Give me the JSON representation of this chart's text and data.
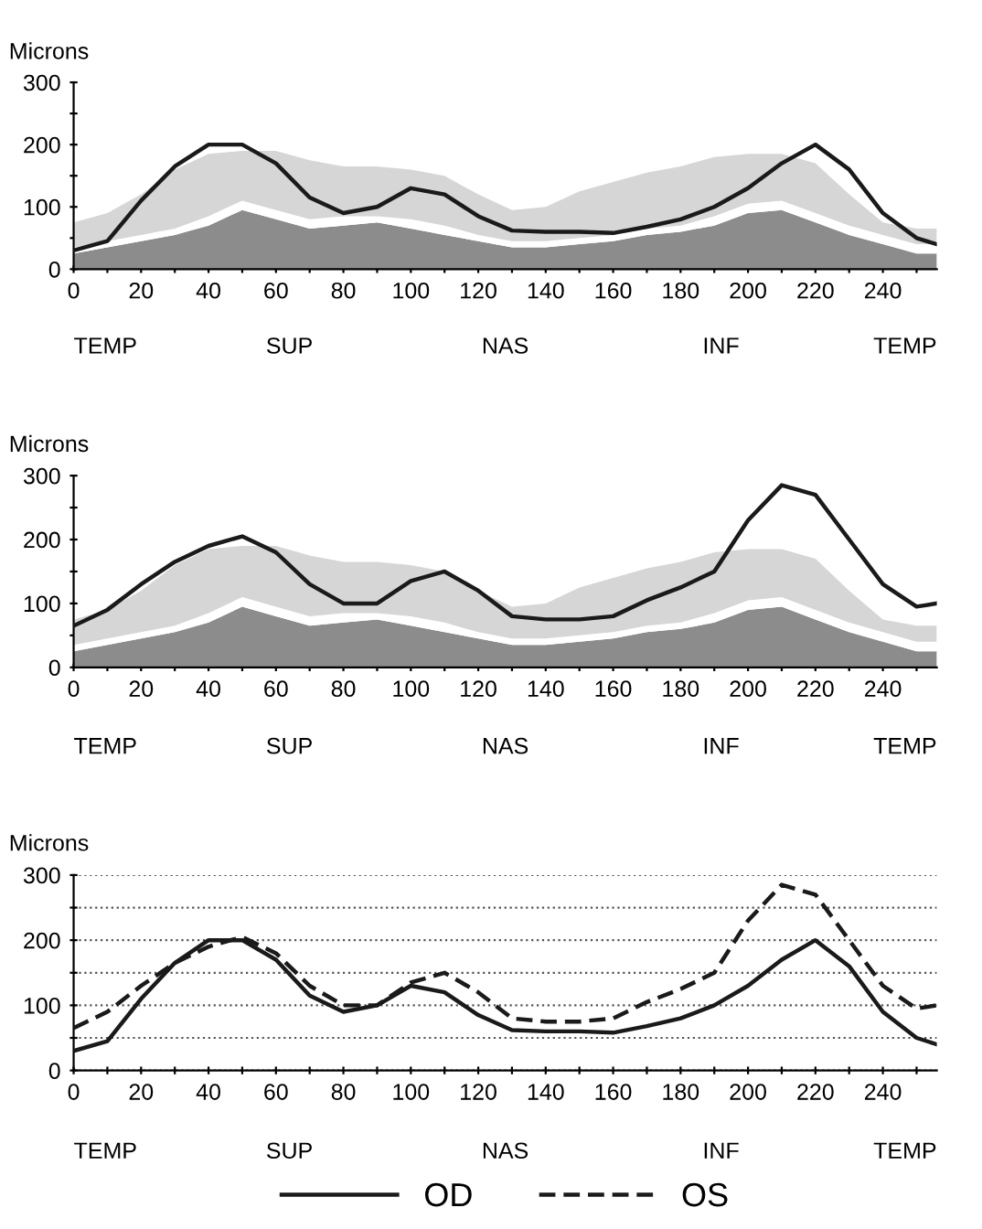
{
  "chart_data": [
    {
      "type": "area",
      "stacked": true,
      "ylabel": "Microns",
      "xlim": [
        0,
        256
      ],
      "ylim": [
        0,
        300
      ],
      "xticks": [
        0,
        {
          "value": 10,
          "label": null
        },
        20,
        {
          "value": 30,
          "label": null
        },
        40,
        {
          "value": 50,
          "label": null
        },
        60,
        {
          "value": 70,
          "label": null
        },
        80,
        {
          "value": 90,
          "label": null
        },
        100,
        {
          "value": 110,
          "label": null
        },
        120,
        {
          "value": 130,
          "label": null
        },
        140,
        {
          "value": 150,
          "label": null
        },
        160,
        {
          "value": 170,
          "label": null
        },
        180,
        {
          "value": 190,
          "label": null
        },
        200,
        {
          "value": 210,
          "label": null
        },
        220,
        {
          "value": 230,
          "label": null
        },
        240,
        {
          "value": 250,
          "label": null
        }
      ],
      "yticks": [
        0,
        {
          "value": 50,
          "label": null
        },
        100,
        {
          "value": 150,
          "label": null
        },
        200,
        {
          "value": 250,
          "label": null
        },
        300
      ],
      "annotations": [
        "TEMP",
        "SUP",
        "NAS",
        "INF",
        "TEMP"
      ],
      "x": [
        0,
        10,
        20,
        30,
        40,
        50,
        60,
        70,
        80,
        90,
        100,
        110,
        120,
        130,
        140,
        150,
        160,
        170,
        180,
        190,
        200,
        210,
        220,
        230,
        240,
        250,
        256
      ],
      "series": [
        {
          "color": "#8c8c8c",
          "values": [
            25,
            35,
            45,
            55,
            70,
            95,
            80,
            65,
            70,
            75,
            65,
            55,
            45,
            35,
            35,
            40,
            45,
            55,
            60,
            70,
            90,
            95,
            75,
            55,
            40,
            25,
            25
          ]
        },
        {
          "color": "#ffffff",
          "values": [
            10,
            10,
            10,
            10,
            15,
            15,
            15,
            15,
            15,
            10,
            15,
            15,
            10,
            10,
            10,
            10,
            10,
            10,
            10,
            15,
            15,
            15,
            15,
            15,
            15,
            15,
            15
          ]
        },
        {
          "color": "#d6d6d6",
          "values": [
            40,
            45,
            65,
            95,
            100,
            80,
            95,
            95,
            80,
            80,
            80,
            80,
            65,
            50,
            55,
            75,
            85,
            90,
            95,
            95,
            80,
            75,
            80,
            50,
            20,
            25,
            25
          ]
        },
        {
          "type": "line",
          "color": "#1a1a1a",
          "values": [
            30,
            45,
            110,
            165,
            200,
            200,
            170,
            115,
            90,
            100,
            130,
            120,
            85,
            62,
            60,
            60,
            58,
            68,
            80,
            100,
            130,
            170,
            200,
            160,
            90,
            50,
            40
          ]
        }
      ]
    },
    {
      "type": "area",
      "stacked": true,
      "ylabel": "Microns",
      "xlim": [
        0,
        256
      ],
      "ylim": [
        0,
        300
      ],
      "xticks": [
        0,
        {
          "value": 10,
          "label": null
        },
        20,
        {
          "value": 30,
          "label": null
        },
        40,
        {
          "value": 50,
          "label": null
        },
        60,
        {
          "value": 70,
          "label": null
        },
        80,
        {
          "value": 90,
          "label": null
        },
        100,
        {
          "value": 110,
          "label": null
        },
        120,
        {
          "value": 130,
          "label": null
        },
        140,
        {
          "value": 150,
          "label": null
        },
        160,
        {
          "value": 170,
          "label": null
        },
        180,
        {
          "value": 190,
          "label": null
        },
        200,
        {
          "value": 210,
          "label": null
        },
        220,
        {
          "value": 230,
          "label": null
        },
        240,
        {
          "value": 250,
          "label": null
        }
      ],
      "yticks": [
        0,
        {
          "value": 50,
          "label": null
        },
        100,
        {
          "value": 150,
          "label": null
        },
        200,
        {
          "value": 250,
          "label": null
        },
        300
      ],
      "annotations": [
        "TEMP",
        "SUP",
        "NAS",
        "INF",
        "TEMP"
      ],
      "x": [
        0,
        10,
        20,
        30,
        40,
        50,
        60,
        70,
        80,
        90,
        100,
        110,
        120,
        130,
        140,
        150,
        160,
        170,
        180,
        190,
        200,
        210,
        220,
        230,
        240,
        250,
        256
      ],
      "series": [
        {
          "color": "#8c8c8c",
          "values": [
            25,
            35,
            45,
            55,
            70,
            95,
            80,
            65,
            70,
            75,
            65,
            55,
            45,
            35,
            35,
            40,
            45,
            55,
            60,
            70,
            90,
            95,
            75,
            55,
            40,
            25,
            25
          ]
        },
        {
          "color": "#ffffff",
          "values": [
            10,
            10,
            10,
            10,
            15,
            15,
            15,
            15,
            15,
            10,
            15,
            15,
            10,
            10,
            10,
            10,
            10,
            10,
            10,
            15,
            15,
            15,
            15,
            15,
            15,
            15,
            15
          ]
        },
        {
          "color": "#d6d6d6",
          "values": [
            40,
            45,
            65,
            95,
            100,
            80,
            95,
            95,
            80,
            80,
            80,
            80,
            65,
            50,
            55,
            75,
            85,
            90,
            95,
            95,
            80,
            75,
            80,
            50,
            20,
            25,
            25
          ]
        },
        {
          "type": "line",
          "color": "#1a1a1a",
          "values": [
            65,
            90,
            130,
            165,
            190,
            205,
            180,
            130,
            100,
            100,
            135,
            150,
            120,
            80,
            75,
            75,
            80,
            105,
            125,
            150,
            230,
            285,
            270,
            200,
            130,
            95,
            100
          ]
        }
      ]
    },
    {
      "type": "line",
      "ylabel": "Microns",
      "xlim": [
        0,
        256
      ],
      "ylim": [
        0,
        300
      ],
      "grid": "y",
      "legend": "bottom",
      "xticks": [
        0,
        {
          "value": 10,
          "label": null
        },
        20,
        {
          "value": 30,
          "label": null
        },
        40,
        {
          "value": 50,
          "label": null
        },
        60,
        {
          "value": 70,
          "label": null
        },
        80,
        {
          "value": 90,
          "label": null
        },
        100,
        {
          "value": 110,
          "label": null
        },
        120,
        {
          "value": 130,
          "label": null
        },
        140,
        {
          "value": 150,
          "label": null
        },
        160,
        {
          "value": 170,
          "label": null
        },
        180,
        {
          "value": 190,
          "label": null
        },
        200,
        {
          "value": 210,
          "label": null
        },
        220,
        {
          "value": 230,
          "label": null
        },
        240,
        {
          "value": 250,
          "label": null
        }
      ],
      "yticks": [
        0,
        {
          "value": 50,
          "label": null
        },
        100,
        {
          "value": 150,
          "label": null
        },
        200,
        {
          "value": 250,
          "label": null
        },
        300
      ],
      "annotations": [
        "TEMP",
        "SUP",
        "NAS",
        "INF",
        "TEMP"
      ],
      "x": [
        0,
        10,
        20,
        30,
        40,
        50,
        60,
        70,
        80,
        90,
        100,
        110,
        120,
        130,
        140,
        150,
        160,
        170,
        180,
        190,
        200,
        210,
        220,
        230,
        240,
        250,
        256
      ],
      "series": [
        {
          "name": "OD",
          "color": "#1a1a1a",
          "line_style": "solid",
          "values": [
            30,
            45,
            110,
            165,
            200,
            200,
            170,
            115,
            90,
            100,
            130,
            120,
            85,
            62,
            60,
            60,
            58,
            68,
            80,
            100,
            130,
            170,
            200,
            160,
            90,
            50,
            40
          ]
        },
        {
          "name": "OS",
          "color": "#1a1a1a",
          "line_style": "dashed",
          "values": [
            65,
            90,
            130,
            165,
            190,
            205,
            180,
            130,
            100,
            100,
            135,
            150,
            120,
            80,
            75,
            75,
            80,
            105,
            125,
            150,
            230,
            285,
            270,
            200,
            130,
            95,
            100
          ]
        }
      ]
    }
  ]
}
